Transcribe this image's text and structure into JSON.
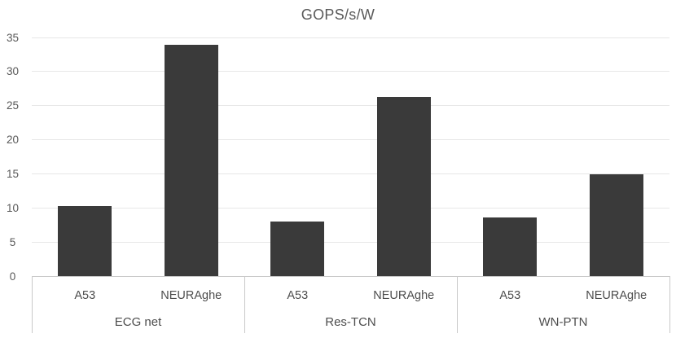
{
  "chart_data": {
    "type": "bar",
    "title": "GOPS/s/W",
    "ylabel": "",
    "xlabel": "",
    "ylim": [
      0,
      35
    ],
    "y_ticks": [
      0,
      5,
      10,
      15,
      20,
      25,
      30,
      35
    ],
    "grid": true,
    "legend": "none",
    "groups": [
      "ECG net",
      "Res-TCN",
      "WN-PTN"
    ],
    "categories_per_group": [
      "A53",
      "NEURAghe"
    ],
    "series_note": "single series; bars grouped by network, split by platform",
    "values": [
      [
        10.3,
        33.9
      ],
      [
        8.0,
        26.3
      ],
      [
        8.6,
        15.0
      ]
    ],
    "colors": {
      "bar": "#3a3a3a",
      "gridline": "#e7e7e7",
      "axis_line": "#c9c9c9",
      "title_text": "#595959",
      "tick_text": "#595959",
      "category_text": "#4d4d4d"
    }
  }
}
